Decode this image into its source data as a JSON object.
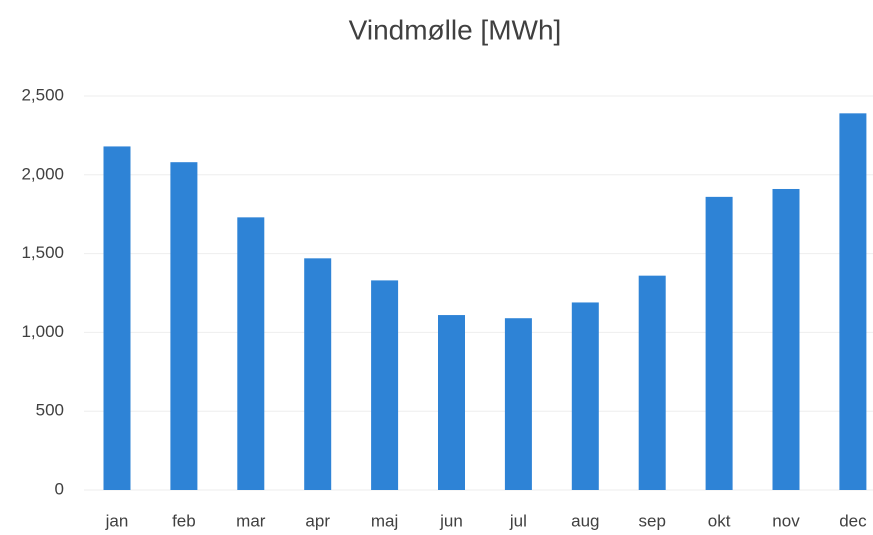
{
  "chart_data": {
    "type": "bar",
    "title": "Vindmølle [MWh]",
    "categories": [
      "jan",
      "feb",
      "mar",
      "apr",
      "maj",
      "jun",
      "jul",
      "aug",
      "sep",
      "okt",
      "nov",
      "dec"
    ],
    "values": [
      2180,
      2080,
      1730,
      1470,
      1330,
      1110,
      1090,
      1190,
      1360,
      1860,
      1910,
      2390
    ],
    "color": "#2e83d6",
    "ylim": [
      0,
      2500
    ],
    "yticks": [
      0,
      500,
      {
        "value": 1000,
        "label": "1,000"
      },
      {
        "value": 1500,
        "label": "1,500"
      },
      {
        "value": 2000,
        "label": "2,000"
      },
      {
        "value": 2500,
        "label": "2,500"
      }
    ],
    "grid": true
  }
}
